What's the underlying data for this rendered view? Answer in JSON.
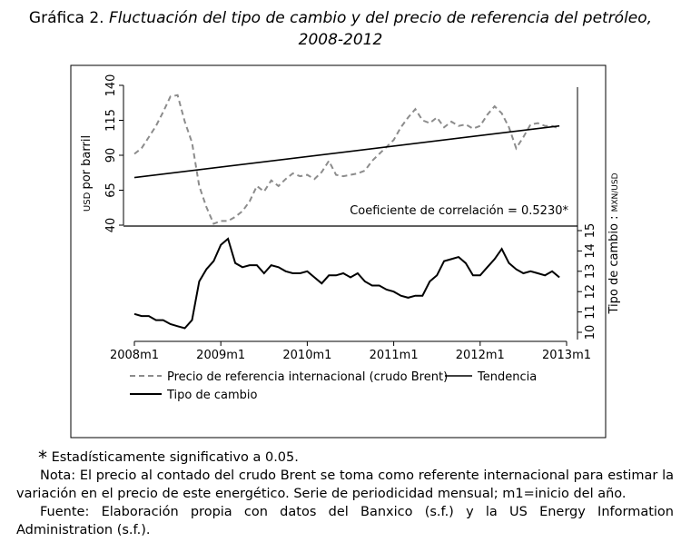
{
  "title": {
    "prefix": "Gráfica 2.",
    "line1": "Fluctuación del tipo de cambio y del precio de referencia del petróleo,",
    "line2": "2008-2012"
  },
  "chart_data": {
    "type": "line",
    "x_ticks": [
      "2008m1",
      "2009m1",
      "2010m1",
      "2011m1",
      "2012m1",
      "2013m1"
    ],
    "x_range": [
      0,
      60
    ],
    "top_panel": {
      "ylabel": "USD por barril",
      "yticks": [
        40,
        65,
        90,
        115,
        140
      ],
      "ylim": [
        40,
        140
      ],
      "series": [
        {
          "name": "Precio de referencia internacional (crudo Brent)",
          "style": "dashed",
          "color": "#8c8c8c",
          "x": [
            0,
            1,
            2,
            3,
            4,
            5,
            6,
            7,
            8,
            9,
            10,
            11,
            12,
            13,
            14,
            15,
            16,
            17,
            18,
            19,
            20,
            21,
            22,
            23,
            24,
            25,
            26,
            27,
            28,
            29,
            30,
            31,
            32,
            33,
            34,
            35,
            36,
            37,
            38,
            39,
            40,
            41,
            42,
            43,
            44,
            45,
            46,
            47,
            48,
            49,
            50,
            51,
            52,
            53,
            54,
            55,
            56,
            57,
            58,
            59
          ],
          "values": [
            91,
            95,
            103,
            111,
            121,
            132,
            133,
            114,
            99,
            68,
            53,
            41,
            43,
            43,
            46,
            50,
            57,
            68,
            64,
            72,
            68,
            73,
            77,
            75,
            76,
            73,
            78,
            86,
            76,
            75,
            76,
            77,
            79,
            86,
            91,
            96,
            101,
            110,
            117,
            123,
            115,
            113,
            117,
            110,
            114,
            111,
            112,
            109,
            111,
            119,
            125,
            120,
            110,
            95,
            103,
            112,
            113,
            111,
            111,
            109
          ]
        },
        {
          "name": "Tendencia",
          "style": "solid",
          "color": "#000000",
          "x": [
            0,
            59
          ],
          "values": [
            74,
            111
          ]
        }
      ],
      "annotation": "Coeficiente de correlación = 0.5230*"
    },
    "bottom_panel": {
      "ylabel": "Tipo de cambio : MXN/USD",
      "yticks": [
        10,
        11,
        12,
        13,
        14,
        15
      ],
      "ylim": [
        10,
        15
      ],
      "series": [
        {
          "name": "Tipo de cambio",
          "style": "solid",
          "color": "#000000",
          "x": [
            0,
            1,
            2,
            3,
            4,
            5,
            6,
            7,
            8,
            9,
            10,
            11,
            12,
            13,
            14,
            15,
            16,
            17,
            18,
            19,
            20,
            21,
            22,
            23,
            24,
            25,
            26,
            27,
            28,
            29,
            30,
            31,
            32,
            33,
            34,
            35,
            36,
            37,
            38,
            39,
            40,
            41,
            42,
            43,
            44,
            45,
            46,
            47,
            48,
            49,
            50,
            51,
            52,
            53,
            54,
            55,
            56,
            57,
            58,
            59
          ],
          "values": [
            10.9,
            10.8,
            10.8,
            10.6,
            10.6,
            10.4,
            10.3,
            10.2,
            10.6,
            12.5,
            13.1,
            13.5,
            14.3,
            14.6,
            13.4,
            13.2,
            13.3,
            13.3,
            12.9,
            13.3,
            13.2,
            13.0,
            12.9,
            12.9,
            13.0,
            12.7,
            12.4,
            12.8,
            12.8,
            12.9,
            12.7,
            12.9,
            12.5,
            12.3,
            12.3,
            12.1,
            12.0,
            11.8,
            11.7,
            11.8,
            11.8,
            12.5,
            12.8,
            13.5,
            13.6,
            13.7,
            13.4,
            12.8,
            12.8,
            13.2,
            13.6,
            14.1,
            13.4,
            13.1,
            12.9,
            13.0,
            12.9,
            12.8,
            13.0,
            12.7
          ]
        }
      ]
    },
    "legend": [
      {
        "label": "Precio de referencia internacional (crudo Brent)",
        "style": "dashed"
      },
      {
        "label": "Tendencia",
        "style": "solid"
      },
      {
        "label": "Tipo de cambio",
        "style": "solid"
      }
    ]
  },
  "notes": {
    "star": "*",
    "significance": "Estadísticamente significativo a 0.05.",
    "nota": "Nota: El precio al contado del crudo Brent se toma como referente internacional para estimar la variación en el precio de este energético. Serie de periodicidad mensual; m1=inicio del año.",
    "fuente": "Fuente: Elaboración propia con datos del Banxico (s.f.) y la US Energy Information Administration (s.f.)."
  }
}
